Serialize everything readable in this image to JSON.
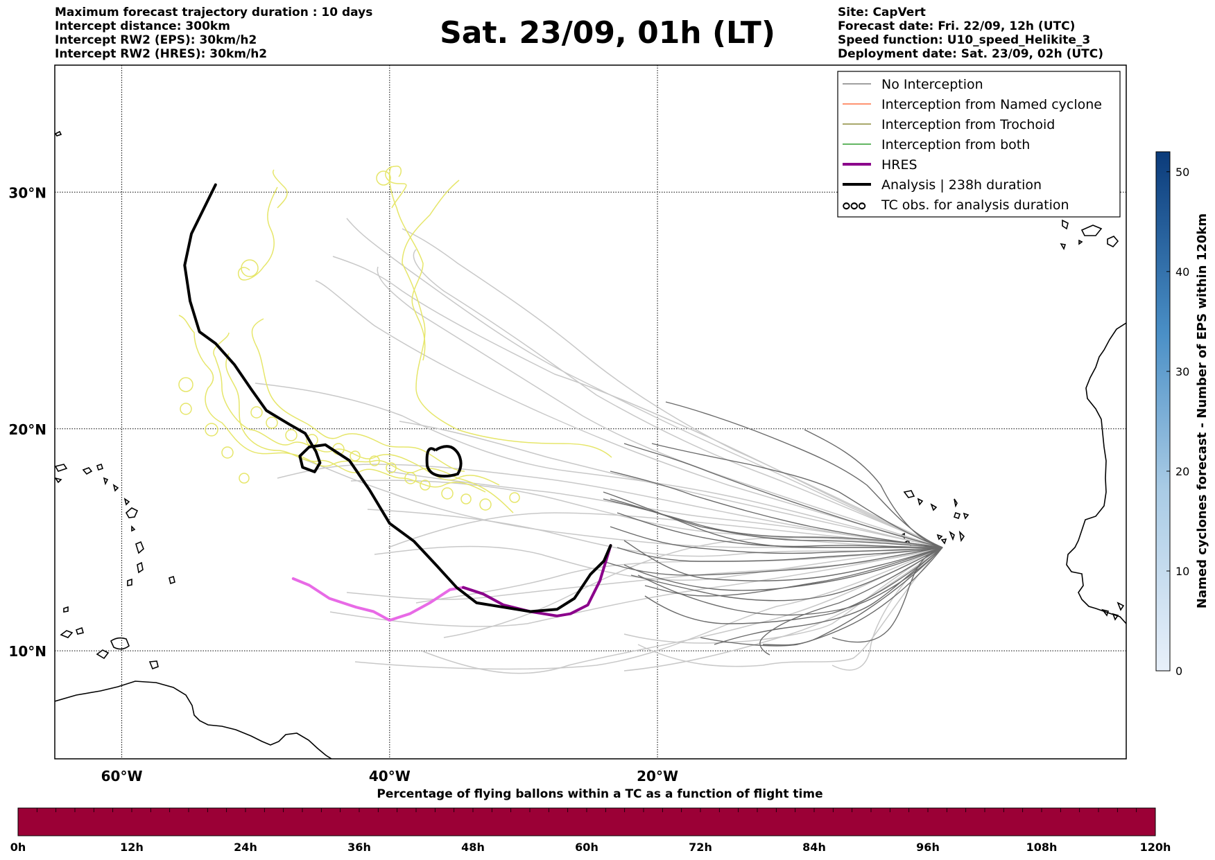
{
  "header": {
    "title": "Sat. 23/09, 01h (LT)",
    "left_lines": [
      "Maximum forecast trajectory duration : 10 days",
      "Intercept distance: 300km",
      "Intercept RW2 (EPS):  30km/h2",
      "Intercept RW2 (HRES): 30km/h2"
    ],
    "right_lines": [
      "Site: CapVert",
      "Forecast date: Fri. 22/09, 12h (UTC)",
      "Speed function: U10_speed_Helikite_3",
      "Deployment date: Sat. 23/09, 02h (UTC)"
    ]
  },
  "map": {
    "lon_range": [
      -65,
      15
    ],
    "lat_range": [
      5,
      35
    ],
    "lon_ticks": [
      {
        "value": -60,
        "label": "60°W"
      },
      {
        "value": -40,
        "label": "40°W"
      },
      {
        "value": -20,
        "label": "20°W"
      }
    ],
    "lat_ticks": [
      {
        "value": 30,
        "label": "30°N"
      },
      {
        "value": 20,
        "label": "20°N"
      },
      {
        "value": 10,
        "label": "10°N"
      }
    ],
    "site": {
      "name": "CapVert",
      "lon": -23.5,
      "lat": 14.9
    }
  },
  "legend": {
    "items": [
      {
        "label": "No Interception",
        "color": "#808080"
      },
      {
        "label": "Interception from Named cyclone",
        "color": "#ff7043"
      },
      {
        "label": "Interception from Trochoid",
        "color": "#8c8a3a"
      },
      {
        "label": "Interception from both",
        "color": "#2e9e2e"
      },
      {
        "label": "HRES",
        "color": "#8b008b"
      },
      {
        "label": "Analysis | 238h duration",
        "color": "#000000"
      },
      {
        "label": "TC obs. for analysis duration",
        "symbol": "ഠഠഠ"
      }
    ]
  },
  "colorbar": {
    "label": "Named cyclones forecast - Number of EPS within 120km",
    "ticks": [
      0,
      10,
      20,
      30,
      40,
      50
    ],
    "max": 52,
    "color_low": "#e8f0fa",
    "color_high": "#0b3b7a"
  },
  "bottom_bar": {
    "title": "Percentage of flying ballons within a TC as a function of flight time",
    "tick_labels": [
      "0h",
      "12h",
      "24h",
      "36h",
      "48h",
      "60h",
      "72h",
      "84h",
      "96h",
      "108h",
      "120h"
    ],
    "color": "#9b0036"
  },
  "tracks": {
    "analysis": [
      [
        -53,
        30.3
      ],
      [
        -54.8,
        28.3
      ],
      [
        -55.3,
        27.0
      ],
      [
        -54.9,
        25.5
      ],
      [
        -54.2,
        24.2
      ],
      [
        -53.0,
        23.7
      ],
      [
        -51.6,
        22.8
      ],
      [
        -50.3,
        21.7
      ],
      [
        -49.2,
        20.8
      ],
      [
        -47.5,
        20.2
      ],
      [
        -46.3,
        19.8
      ],
      [
        -45.5,
        19.0
      ],
      [
        -45.2,
        18.5
      ],
      [
        -45.6,
        18.1
      ],
      [
        -46.5,
        18.3
      ],
      [
        -46.7,
        18.8
      ],
      [
        -46.0,
        19.2
      ],
      [
        -44.8,
        19.3
      ],
      [
        -43.0,
        18.6
      ],
      [
        -41.5,
        17.3
      ],
      [
        -40.0,
        15.8
      ],
      [
        -38.2,
        15.0
      ],
      [
        -36.5,
        13.9
      ],
      [
        -35.0,
        12.9
      ],
      [
        -33.5,
        12.2
      ],
      [
        -31.5,
        12.0
      ],
      [
        -29.5,
        11.8
      ],
      [
        -27.5,
        11.9
      ],
      [
        -26.2,
        12.4
      ],
      [
        -25.0,
        13.5
      ],
      [
        -24.0,
        14.1
      ],
      [
        -23.5,
        14.8
      ]
    ],
    "hres": [
      [
        -47.2,
        13.3
      ],
      [
        -46.0,
        13.0
      ],
      [
        -44.5,
        12.4
      ],
      [
        -42.5,
        12.0
      ],
      [
        -41.2,
        11.8
      ],
      [
        -40.0,
        11.4
      ],
      [
        -38.5,
        11.7
      ],
      [
        -37.0,
        12.2
      ],
      [
        -35.5,
        12.8
      ],
      [
        -34.5,
        12.9
      ],
      [
        -33.0,
        12.6
      ],
      [
        -31.5,
        12.1
      ],
      [
        -29.5,
        11.8
      ],
      [
        -27.5,
        11.6
      ],
      [
        -26.5,
        11.7
      ],
      [
        -25.2,
        12.1
      ],
      [
        -24.3,
        13.2
      ],
      [
        -23.5,
        14.8
      ]
    ]
  }
}
